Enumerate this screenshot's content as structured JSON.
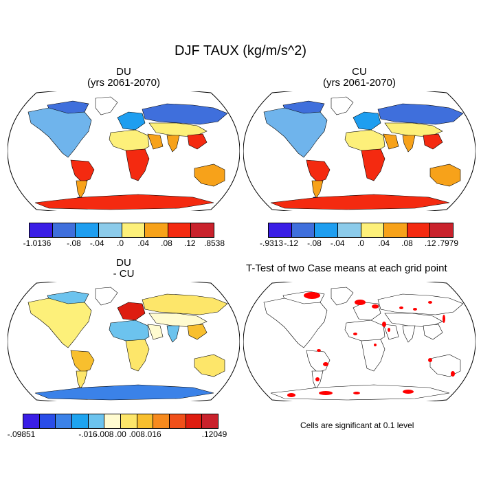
{
  "title": "DJF TAUX (kg/m/s^2)",
  "panels": {
    "du": {
      "title_line1": "DU",
      "title_line2": "(yrs 2061-2070)",
      "colorbar": {
        "colors": [
          "#3a1ee6",
          "#3f6fdc",
          "#1e9ef0",
          "#8ccbea",
          "#fdf07a",
          "#f7a21a",
          "#f42a10",
          "#c9222c"
        ],
        "labels": [
          "-1.0136",
          "-.08",
          "-.04",
          ".0",
          ".04",
          ".08",
          ".12",
          ".8538"
        ]
      }
    },
    "cu": {
      "title_line1": "CU",
      "title_line2": "(yrs 2061-2070)",
      "colorbar": {
        "colors": [
          "#3a1ee6",
          "#3f6fdc",
          "#1e9ef0",
          "#8ccbea",
          "#fdf07a",
          "#f7a21a",
          "#f42a10",
          "#c9222c"
        ],
        "labels": [
          "-.9313",
          "-.12",
          "-.08",
          "-.04",
          ".0",
          ".04",
          ".08",
          ".12",
          ".7979"
        ]
      }
    },
    "diff": {
      "title_line1": "DU",
      "title_line2": "- CU",
      "colorbar": {
        "colors": [
          "#3a1ee6",
          "#2a4de8",
          "#3b82e8",
          "#1ea4f0",
          "#6cc3ee",
          "#fffbd0",
          "#fde66a",
          "#f8bf2e",
          "#f68a1e",
          "#f0501a",
          "#de1d10",
          "#c9222c"
        ],
        "labels": [
          "-.09851",
          "-.016",
          "-.008",
          ".00",
          ".008",
          ".016",
          ".12049"
        ]
      }
    },
    "ttest": {
      "title": "T-Test of two Case means at each grid point",
      "note": "Cells are significant at 0.1 level",
      "significant_color": "#ff0000"
    }
  },
  "land_palette": {
    "du": {
      "n_america": "#6fb4ec",
      "greenland": "#ffffff",
      "arctic_canada": "#3f6fdc",
      "s_america_n": "#f42a10",
      "s_america_s": "#f7a21a",
      "patagonia": "#3a1ee6",
      "europe": "#1e9ef0",
      "asia_n": "#3f6fdc",
      "asia_s": "#fdf07a",
      "africa_n": "#fdf07a",
      "africa_s": "#f42a10",
      "arabia": "#f7a21a",
      "india": "#f7a21a",
      "se_asia": "#f42a10",
      "australia": "#f7a21a",
      "antarctica": "#f42a10"
    },
    "cu": {
      "n_america": "#6fb4ec",
      "greenland": "#ffffff",
      "arctic_canada": "#3f6fdc",
      "s_america_n": "#f42a10",
      "s_america_s": "#f7a21a",
      "patagonia": "#3a1ee6",
      "europe": "#1e9ef0",
      "asia_n": "#3f6fdc",
      "asia_s": "#fdf07a",
      "africa_n": "#fdf07a",
      "africa_s": "#f42a10",
      "arabia": "#f7a21a",
      "india": "#f7a21a",
      "se_asia": "#f42a10",
      "australia": "#f7a21a",
      "antarctica": "#f42a10"
    },
    "diff": {
      "n_america": "#fdf07a",
      "greenland": "#ffffff",
      "arctic_canada": "#6cc3ee",
      "s_america_n": "#f8bf2e",
      "s_america_s": "#fde66a",
      "patagonia": "#f0501a",
      "europe": "#de1d10",
      "asia_n": "#fde66a",
      "asia_s": "#fffbd0",
      "africa_n": "#6cc3ee",
      "africa_s": "#fde66a",
      "arabia": "#fffbd0",
      "india": "#6cc3ee",
      "se_asia": "#f8bf2e",
      "australia": "#fde66a",
      "antarctica": "#3b82e8"
    }
  }
}
